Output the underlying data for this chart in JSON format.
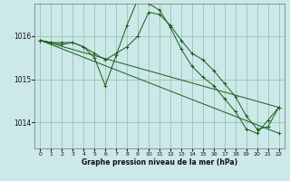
{
  "bg_color": "#cce8e8",
  "grid_color": "#99ccbb",
  "line_color": "#1a5c1a",
  "xlabel": "Graphe pression niveau de la mer (hPa)",
  "xlim": [
    -0.5,
    22.5
  ],
  "ylim": [
    1013.4,
    1016.75
  ],
  "yticks": [
    1014,
    1015,
    1016
  ],
  "xticks": [
    0,
    1,
    2,
    3,
    4,
    5,
    6,
    7,
    8,
    9,
    10,
    11,
    12,
    13,
    14,
    15,
    16,
    17,
    18,
    19,
    20,
    21,
    22
  ],
  "series_x": [
    [
      0,
      1,
      2,
      3,
      4,
      5,
      6,
      7,
      8,
      9,
      10,
      11,
      12,
      13,
      14,
      15,
      16,
      17,
      18,
      19,
      20,
      21,
      22
    ],
    [
      0,
      1,
      2,
      3,
      4,
      5,
      6,
      7,
      8,
      9,
      10,
      11,
      12,
      13,
      14,
      15,
      16,
      17,
      18,
      19,
      20,
      21,
      22
    ],
    [
      0,
      22
    ],
    [
      0,
      22
    ]
  ],
  "series_y": [
    [
      1015.9,
      1015.85,
      1015.8,
      1015.85,
      1015.75,
      1015.6,
      1015.45,
      1015.6,
      1015.75,
      1016.0,
      1016.55,
      1016.5,
      1016.25,
      1015.9,
      1015.6,
      1015.45,
      1015.2,
      1014.9,
      1014.6,
      1014.15,
      1013.85,
      1013.9,
      1014.35
    ],
    [
      1015.9,
      1015.85,
      1015.85,
      1015.85,
      1015.75,
      1015.5,
      1014.85,
      1015.55,
      1016.25,
      1016.85,
      1016.75,
      1016.6,
      1016.2,
      1015.7,
      1015.3,
      1015.05,
      1014.85,
      1014.55,
      1014.25,
      1013.85,
      1013.75,
      1014.05,
      1014.35
    ],
    [
      1015.9,
      1013.75
    ],
    [
      1015.9,
      1014.35
    ]
  ]
}
